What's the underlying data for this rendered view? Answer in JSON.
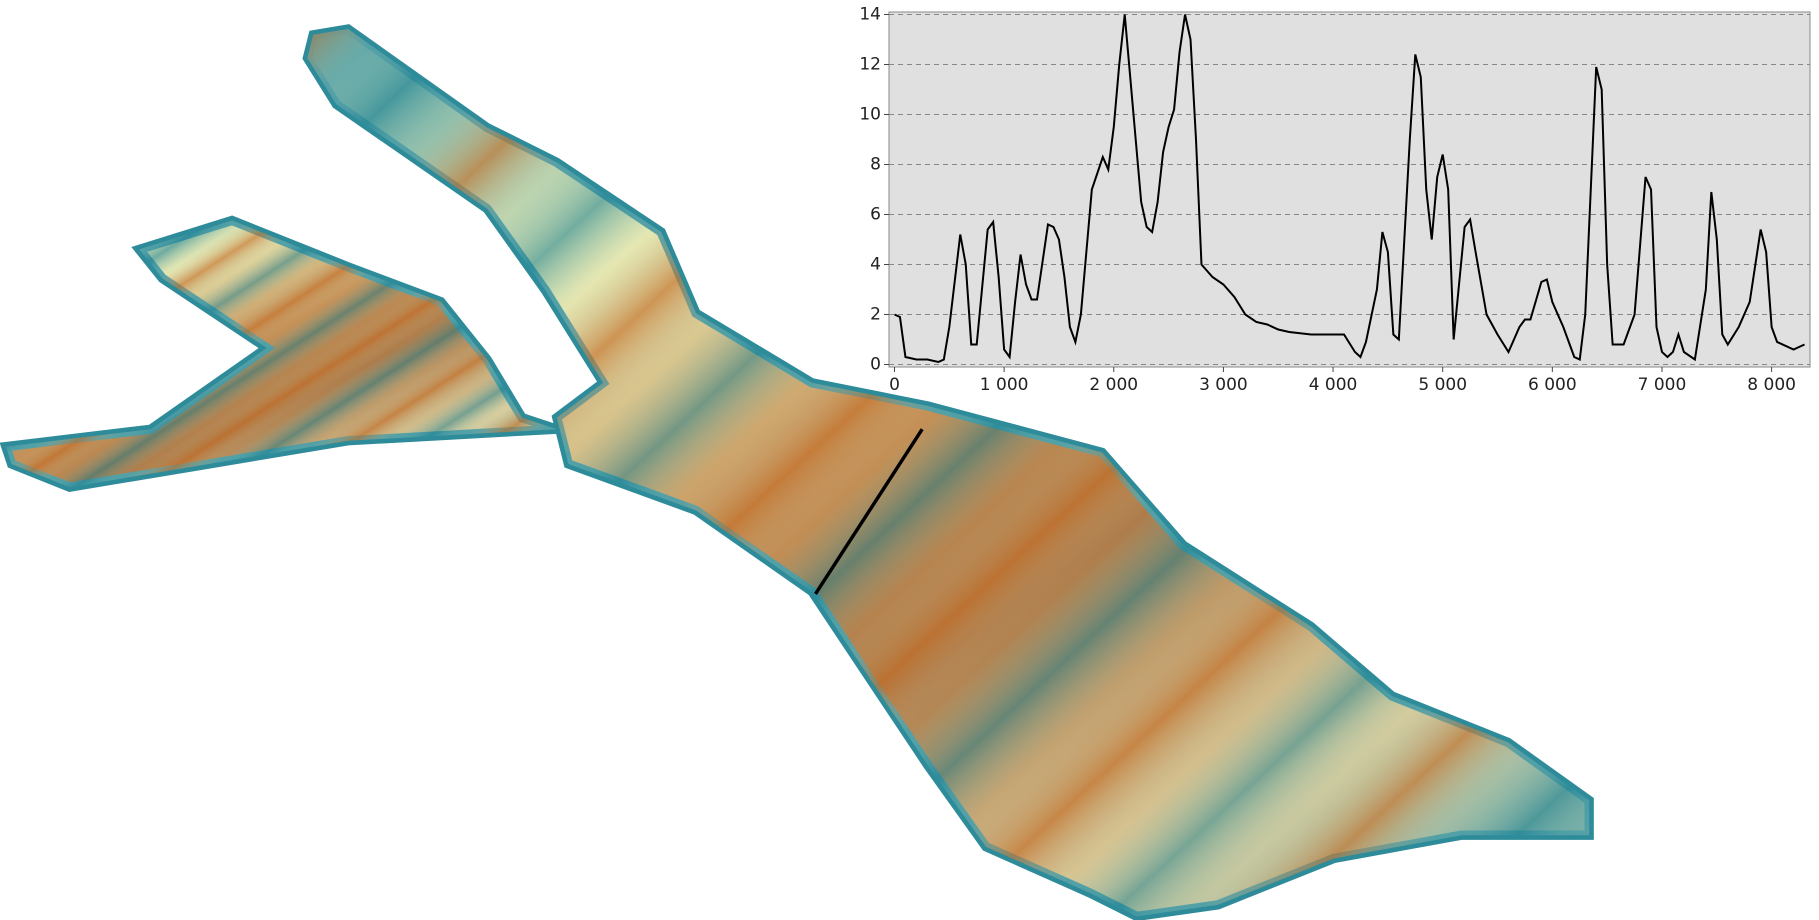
{
  "chart_data": {
    "type": "line",
    "color": "#000000",
    "grid": true,
    "x": [
      0,
      50,
      100,
      200,
      300,
      400,
      450,
      500,
      600,
      650,
      700,
      750,
      850,
      900,
      950,
      1000,
      1050,
      1100,
      1150,
      1200,
      1250,
      1300,
      1400,
      1450,
      1500,
      1550,
      1600,
      1650,
      1700,
      1800,
      1900,
      1950,
      2000,
      2050,
      2100,
      2150,
      2200,
      2250,
      2300,
      2350,
      2400,
      2450,
      2500,
      2550,
      2600,
      2650,
      2700,
      2750,
      2800,
      2900,
      3000,
      3100,
      3200,
      3300,
      3400,
      3500,
      3600,
      3800,
      4000,
      4100,
      4200,
      4250,
      4300,
      4400,
      4450,
      4500,
      4550,
      4600,
      4700,
      4750,
      4800,
      4850,
      4900,
      4950,
      5000,
      5050,
      5100,
      5200,
      5250,
      5300,
      5400,
      5500,
      5600,
      5700,
      5750,
      5800,
      5900,
      5950,
      6000,
      6100,
      6200,
      6250,
      6300,
      6400,
      6450,
      6500,
      6550,
      6650,
      6750,
      6850,
      6900,
      6950,
      7000,
      7050,
      7100,
      7150,
      7200,
      7300,
      7400,
      7450,
      7500,
      7550,
      7600,
      7700,
      7800,
      7900,
      7950,
      8000,
      8050,
      8200,
      8300
    ],
    "values": [
      2.0,
      1.9,
      0.3,
      0.2,
      0.2,
      0.1,
      0.2,
      1.5,
      5.2,
      4.0,
      0.8,
      0.8,
      5.4,
      5.7,
      3.5,
      0.6,
      0.3,
      2.5,
      4.4,
      3.2,
      2.6,
      2.6,
      5.6,
      5.5,
      5.0,
      3.5,
      1.5,
      0.9,
      2.0,
      7.0,
      8.3,
      7.8,
      9.5,
      12.0,
      14.0,
      11.5,
      9.0,
      6.5,
      5.5,
      5.3,
      6.5,
      8.5,
      9.5,
      10.2,
      12.5,
      14.0,
      13.0,
      9.0,
      4.0,
      3.5,
      3.2,
      2.7,
      2.0,
      1.7,
      1.6,
      1.4,
      1.3,
      1.2,
      1.2,
      1.2,
      0.5,
      0.3,
      0.9,
      3.0,
      5.3,
      4.5,
      1.2,
      1.0,
      9.0,
      12.4,
      11.5,
      7.0,
      5.0,
      7.5,
      8.4,
      7.0,
      1.0,
      5.5,
      5.8,
      4.5,
      2.0,
      1.2,
      0.5,
      1.5,
      1.8,
      1.8,
      3.3,
      3.4,
      2.5,
      1.5,
      0.3,
      0.2,
      2.0,
      11.9,
      11.0,
      4.0,
      0.8,
      0.8,
      2.0,
      7.5,
      7.0,
      1.5,
      0.5,
      0.3,
      0.5,
      1.2,
      0.5,
      0.2,
      3.0,
      6.9,
      5.0,
      1.2,
      0.8,
      1.5,
      2.5,
      5.4,
      4.5,
      1.5,
      0.9,
      0.6,
      0.8
    ],
    "xlim": [
      -50,
      8350
    ],
    "ylim": [
      -0.1,
      14.1
    ],
    "xticks": [
      0,
      {
        "value": 1000,
        "label": "1 000"
      },
      {
        "value": 2000,
        "label": "2 000"
      },
      {
        "value": 3000,
        "label": "3 000"
      },
      {
        "value": 4000,
        "label": "4 000"
      },
      {
        "value": 5000,
        "label": "5 000"
      },
      {
        "value": 6000,
        "label": "6 000"
      },
      {
        "value": 7000,
        "label": "7 000"
      },
      {
        "value": 8000,
        "label": "8 000"
      }
    ],
    "yticks": [
      0,
      2,
      4,
      6,
      8,
      10,
      12,
      14
    ]
  }
}
